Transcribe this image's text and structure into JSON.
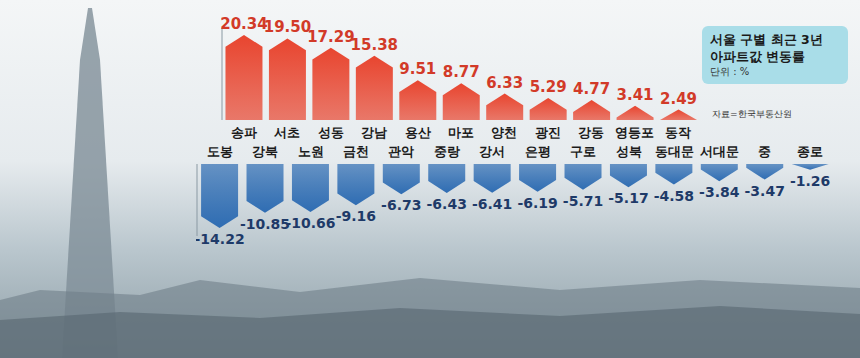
{
  "chart_data": [
    {
      "type": "bar",
      "title": "서울 구별 최근 3년 아파트값 변동률",
      "subtitle": "단위 : %",
      "annotations": [
        "자료=한국부동산원"
      ],
      "categories": [
        "송파",
        "서초",
        "성동",
        "강남",
        "용산",
        "마포",
        "양천",
        "광진",
        "강동",
        "영등포",
        "동작"
      ],
      "values": [
        20.34,
        19.5,
        17.29,
        15.38,
        9.51,
        8.77,
        6.33,
        5.29,
        4.77,
        3.41,
        2.49
      ],
      "value_labels": [
        "20.34",
        "19.50",
        "17.29",
        "15.38",
        "9.51",
        "8.77",
        "6.33",
        "5.29",
        "4.77",
        "3.41",
        "2.49"
      ],
      "color": "#e8452f",
      "ylim": [
        0,
        22
      ],
      "yticks": [
        0
      ],
      "data_labels": true,
      "tick_labels": "x"
    },
    {
      "type": "bar",
      "categories": [
        "도봉",
        "강북",
        "노원",
        "금천",
        "관악",
        "중랑",
        "강서",
        "은평",
        "구로",
        "성북",
        "동대문",
        "서대문",
        "중",
        "종로"
      ],
      "values": [
        -14.22,
        -10.85,
        -10.66,
        -9.16,
        -6.73,
        -6.43,
        -6.41,
        -6.19,
        -5.71,
        -5.17,
        -4.58,
        -3.84,
        -3.47,
        -1.26
      ],
      "value_labels": [
        "-14.22",
        "-10.85",
        "-10.66",
        "-9.16",
        "-6.73",
        "-6.43",
        "-6.41",
        "-6.19",
        "-5.71",
        "-5.17",
        "-4.58",
        "-3.84",
        "-3.47",
        "-1.26"
      ],
      "color": "#2f6db3",
      "ylim": [
        -16,
        0
      ],
      "yticks": [
        0
      ],
      "data_labels": true,
      "tick_labels": "x"
    }
  ]
}
